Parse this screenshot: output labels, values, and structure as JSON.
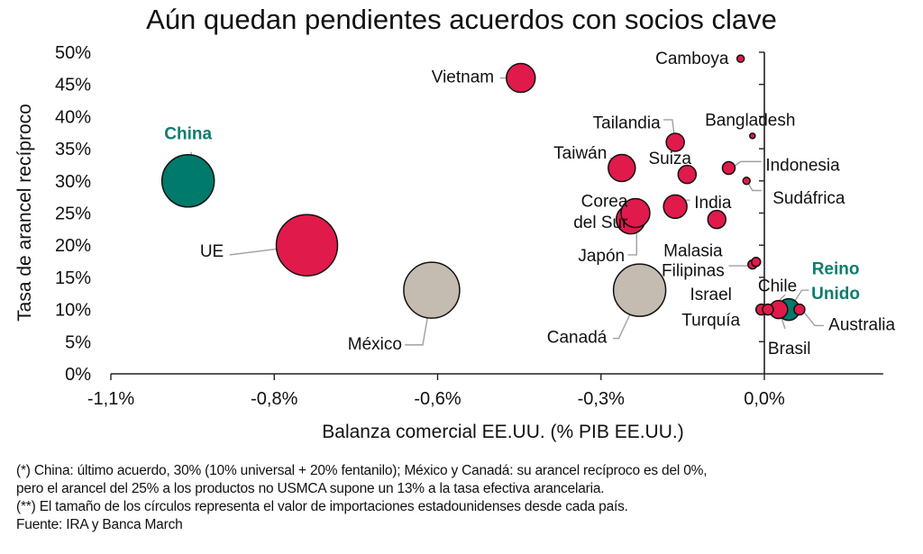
{
  "chart_data": {
    "type": "scatter",
    "subtype": "bubble",
    "title": "Aún quedan pendientes acuerdos con socios clave",
    "xlabel": "Balanza comercial EE.UU. (% PIB EE.UU.)",
    "ylabel": "Tasa de arancel recíproco",
    "xlim": [
      -1.1,
      0.2
    ],
    "ylim": [
      0,
      50
    ],
    "x_ticks": [
      -1.1,
      -0.825,
      -0.55,
      -0.275,
      0.0
    ],
    "x_tick_labels": [
      "-1,1%",
      "-0,8%",
      "-0,6%",
      "-0,3%",
      "0,0%"
    ],
    "y_ticks": [
      0,
      5,
      10,
      15,
      20,
      25,
      30,
      35,
      40,
      45,
      50
    ],
    "y_tick_labels": [
      "0%",
      "5%",
      "10%",
      "15%",
      "20%",
      "25%",
      "30%",
      "35%",
      "40%",
      "45%",
      "50%"
    ],
    "grid": false,
    "legend": "none",
    "colors": {
      "default": "#e01a4b",
      "highlight": "#007a6a",
      "usmca": "#c4bcb0",
      "outline": "#111111",
      "leader": "#a0a0a0",
      "highlight_label": "#0e7d6d"
    },
    "points": [
      {
        "name": "China",
        "x": -0.97,
        "y": 30,
        "size": 29,
        "group": "highlight"
      },
      {
        "name": "UE",
        "x": -0.77,
        "y": 20,
        "size": 34,
        "group": "default"
      },
      {
        "name": "México",
        "x": -0.56,
        "y": 13,
        "size": 31,
        "group": "usmca"
      },
      {
        "name": "Canadá",
        "x": -0.21,
        "y": 13,
        "size": 29,
        "group": "usmca"
      },
      {
        "name": "Vietnam",
        "x": -0.41,
        "y": 46,
        "size": 16,
        "group": "default"
      },
      {
        "name": "Camboya",
        "x": -0.04,
        "y": 49,
        "size": 4,
        "group": "default"
      },
      {
        "name": "Bangladesh",
        "x": -0.02,
        "y": 37,
        "size": 3,
        "group": "default"
      },
      {
        "name": "Tailandia",
        "x": -0.15,
        "y": 36,
        "size": 10,
        "group": "default"
      },
      {
        "name": "Taiwán",
        "x": -0.24,
        "y": 32,
        "size": 15,
        "group": "default"
      },
      {
        "name": "Suiza",
        "x": -0.13,
        "y": 31,
        "size": 10,
        "group": "default"
      },
      {
        "name": "Indonesia",
        "x": -0.06,
        "y": 32,
        "size": 7,
        "group": "default"
      },
      {
        "name": "Sudáfrica",
        "x": -0.03,
        "y": 30,
        "size": 4,
        "group": "default"
      },
      {
        "name": "India",
        "x": -0.15,
        "y": 26,
        "size": 13,
        "group": "default"
      },
      {
        "name": "Japón",
        "x": -0.225,
        "y": 24,
        "size": 16,
        "group": "default"
      },
      {
        "name": "Corea del Sur",
        "x": -0.217,
        "y": 25,
        "size": 16,
        "group": "default"
      },
      {
        "name": "Malasia",
        "x": -0.08,
        "y": 24,
        "size": 10,
        "group": "default"
      },
      {
        "name": "Filipinas",
        "x": -0.02,
        "y": 17,
        "size": 5,
        "group": "default"
      },
      {
        "name": "Filipinas-2",
        "x": -0.014,
        "y": 17.4,
        "size": 5,
        "group": "default"
      },
      {
        "name": "Turquía",
        "x": -0.005,
        "y": 10,
        "size": 6,
        "group": "default"
      },
      {
        "name": "Israel",
        "x": 0.006,
        "y": 10,
        "size": 6,
        "group": "default"
      },
      {
        "name": "Reino Unido",
        "x": 0.041,
        "y": 10,
        "size": 12,
        "group": "highlight"
      },
      {
        "name": "Brasil",
        "x": 0.024,
        "y": 10,
        "size": 10,
        "group": "default"
      },
      {
        "name": "Australia",
        "x": 0.059,
        "y": 10,
        "size": 6,
        "group": "default"
      }
    ],
    "labels": [
      {
        "text": "China",
        "x": -0.97,
        "y": 36.5,
        "anchor": "middle",
        "highlight": true,
        "leader": [
          [
            -0.965,
            34.5
          ],
          [
            -0.96,
            30
          ]
        ]
      },
      {
        "text": "UE",
        "x": -0.91,
        "y": 18.2,
        "anchor": "end",
        "leader": [
          [
            -0.9,
            18.5
          ],
          [
            -0.77,
            20
          ]
        ]
      },
      {
        "text": "Vietnam",
        "x": -0.455,
        "y": 45.3,
        "anchor": "end",
        "leader": [
          [
            -0.445,
            46
          ],
          [
            -0.41,
            46
          ]
        ]
      },
      {
        "text": "Camboya",
        "x": -0.06,
        "y": 48.2,
        "anchor": "end"
      },
      {
        "text": "Bangladesh",
        "x": -0.1,
        "y": 38.6,
        "anchor": "start"
      },
      {
        "text": "Tailandia",
        "x": -0.175,
        "y": 38.2,
        "anchor": "end",
        "leader": [
          [
            -0.17,
            39.5
          ],
          [
            -0.155,
            39.5
          ],
          [
            -0.15,
            36
          ]
        ]
      },
      {
        "text": "Taiwán",
        "x": -0.265,
        "y": 33.5,
        "anchor": "end",
        "leader": [
          [
            -0.26,
            33.5
          ],
          [
            -0.245,
            33.5
          ],
          [
            -0.23,
            32
          ]
        ]
      },
      {
        "text": "Suiza",
        "x": -0.195,
        "y": 32.6,
        "anchor": "start"
      },
      {
        "text": "Indonesia",
        "x": 0.002,
        "y": 31.6,
        "anchor": "start",
        "leader": [
          [
            -0.005,
            33
          ],
          [
            -0.04,
            33
          ],
          [
            -0.055,
            32
          ]
        ]
      },
      {
        "text": "Sudáfrica",
        "x": 0.014,
        "y": 26.5,
        "anchor": "start",
        "leader": [
          [
            -0.005,
            28.5
          ],
          [
            -0.02,
            28.5
          ],
          [
            -0.03,
            30
          ]
        ]
      },
      {
        "text": "India",
        "x": -0.118,
        "y": 25.8,
        "anchor": "start",
        "leader": [
          [
            -0.125,
            27
          ],
          [
            -0.14,
            27
          ],
          [
            -0.15,
            25.5
          ]
        ]
      },
      {
        "text": "Corea",
        "x": -0.23,
        "y": 26,
        "anchor": "end"
      },
      {
        "text": "del Sur",
        "x": -0.23,
        "y": 22.7,
        "anchor": "end",
        "leader": [
          [
            -0.235,
            25
          ],
          [
            -0.21,
            25
          ]
        ]
      },
      {
        "text": "Japón",
        "x": -0.235,
        "y": 17.5,
        "anchor": "end",
        "leader": [
          [
            -0.23,
            18.5
          ],
          [
            -0.215,
            18.5
          ],
          [
            -0.215,
            22
          ]
        ]
      },
      {
        "text": "Malasia",
        "x": -0.12,
        "y": 18.3,
        "anchor": "middle"
      },
      {
        "text": "Filipinas",
        "x": -0.12,
        "y": 15.2,
        "anchor": "middle",
        "leader": [
          [
            -0.06,
            16.8
          ],
          [
            -0.025,
            16.8
          ]
        ]
      },
      {
        "text": "Chile",
        "x": 0.022,
        "y": 12.8,
        "anchor": "middle"
      },
      {
        "text": "Israel",
        "x": -0.09,
        "y": 11.5,
        "anchor": "middle"
      },
      {
        "text": "Turquía",
        "x": -0.09,
        "y": 7.5,
        "anchor": "middle"
      },
      {
        "text": "Reino",
        "x": 0.12,
        "y": 15.5,
        "anchor": "middle",
        "highlight": true
      },
      {
        "text": "Unido",
        "x": 0.12,
        "y": 11.6,
        "anchor": "middle",
        "highlight": true,
        "leader": [
          [
            0.075,
            13
          ],
          [
            0.063,
            13
          ],
          [
            0.042,
            10
          ]
        ]
      },
      {
        "text": "Australia",
        "x": 0.108,
        "y": 6.8,
        "anchor": "start",
        "leader": [
          [
            0.1,
            7.5
          ],
          [
            0.085,
            7.5
          ],
          [
            0.063,
            10
          ]
        ]
      },
      {
        "text": "Brasil",
        "x": 0.042,
        "y": 3.1,
        "anchor": "middle",
        "leader": [
          [
            0.035,
            7
          ],
          [
            0.024,
            10
          ]
        ]
      },
      {
        "text": "Canadá",
        "x": -0.265,
        "y": 4.8,
        "anchor": "end",
        "leader": [
          [
            -0.255,
            5.5
          ],
          [
            -0.245,
            5.5
          ],
          [
            -0.21,
            12.5
          ]
        ]
      },
      {
        "text": "México",
        "x": -0.61,
        "y": 3.8,
        "anchor": "end",
        "leader": [
          [
            -0.605,
            4.5
          ],
          [
            -0.575,
            4.5
          ],
          [
            -0.56,
            12.5
          ]
        ]
      }
    ],
    "chile_leaders": [
      [
        [
          0.045,
          12.3
        ],
        [
          0.008,
          9.9
        ]
      ],
      [
        [
          -0.003,
          10
        ],
        [
          -0.003,
          10
        ]
      ]
    ]
  },
  "notes": [
    "(*) China: último acuerdo, 30% (10% universal + 20% fentanilo); México y Canadá: su arancel recíproco es del 0%,",
    "pero el arancel del 25% a los productos no USMCA supone un 13% a la tasa efectiva arancelaria.",
    "(**) El tamaño de los círculos representa el valor de importaciones estadounidenses desde cada país.",
    "Fuente: IRA y Banca March"
  ]
}
